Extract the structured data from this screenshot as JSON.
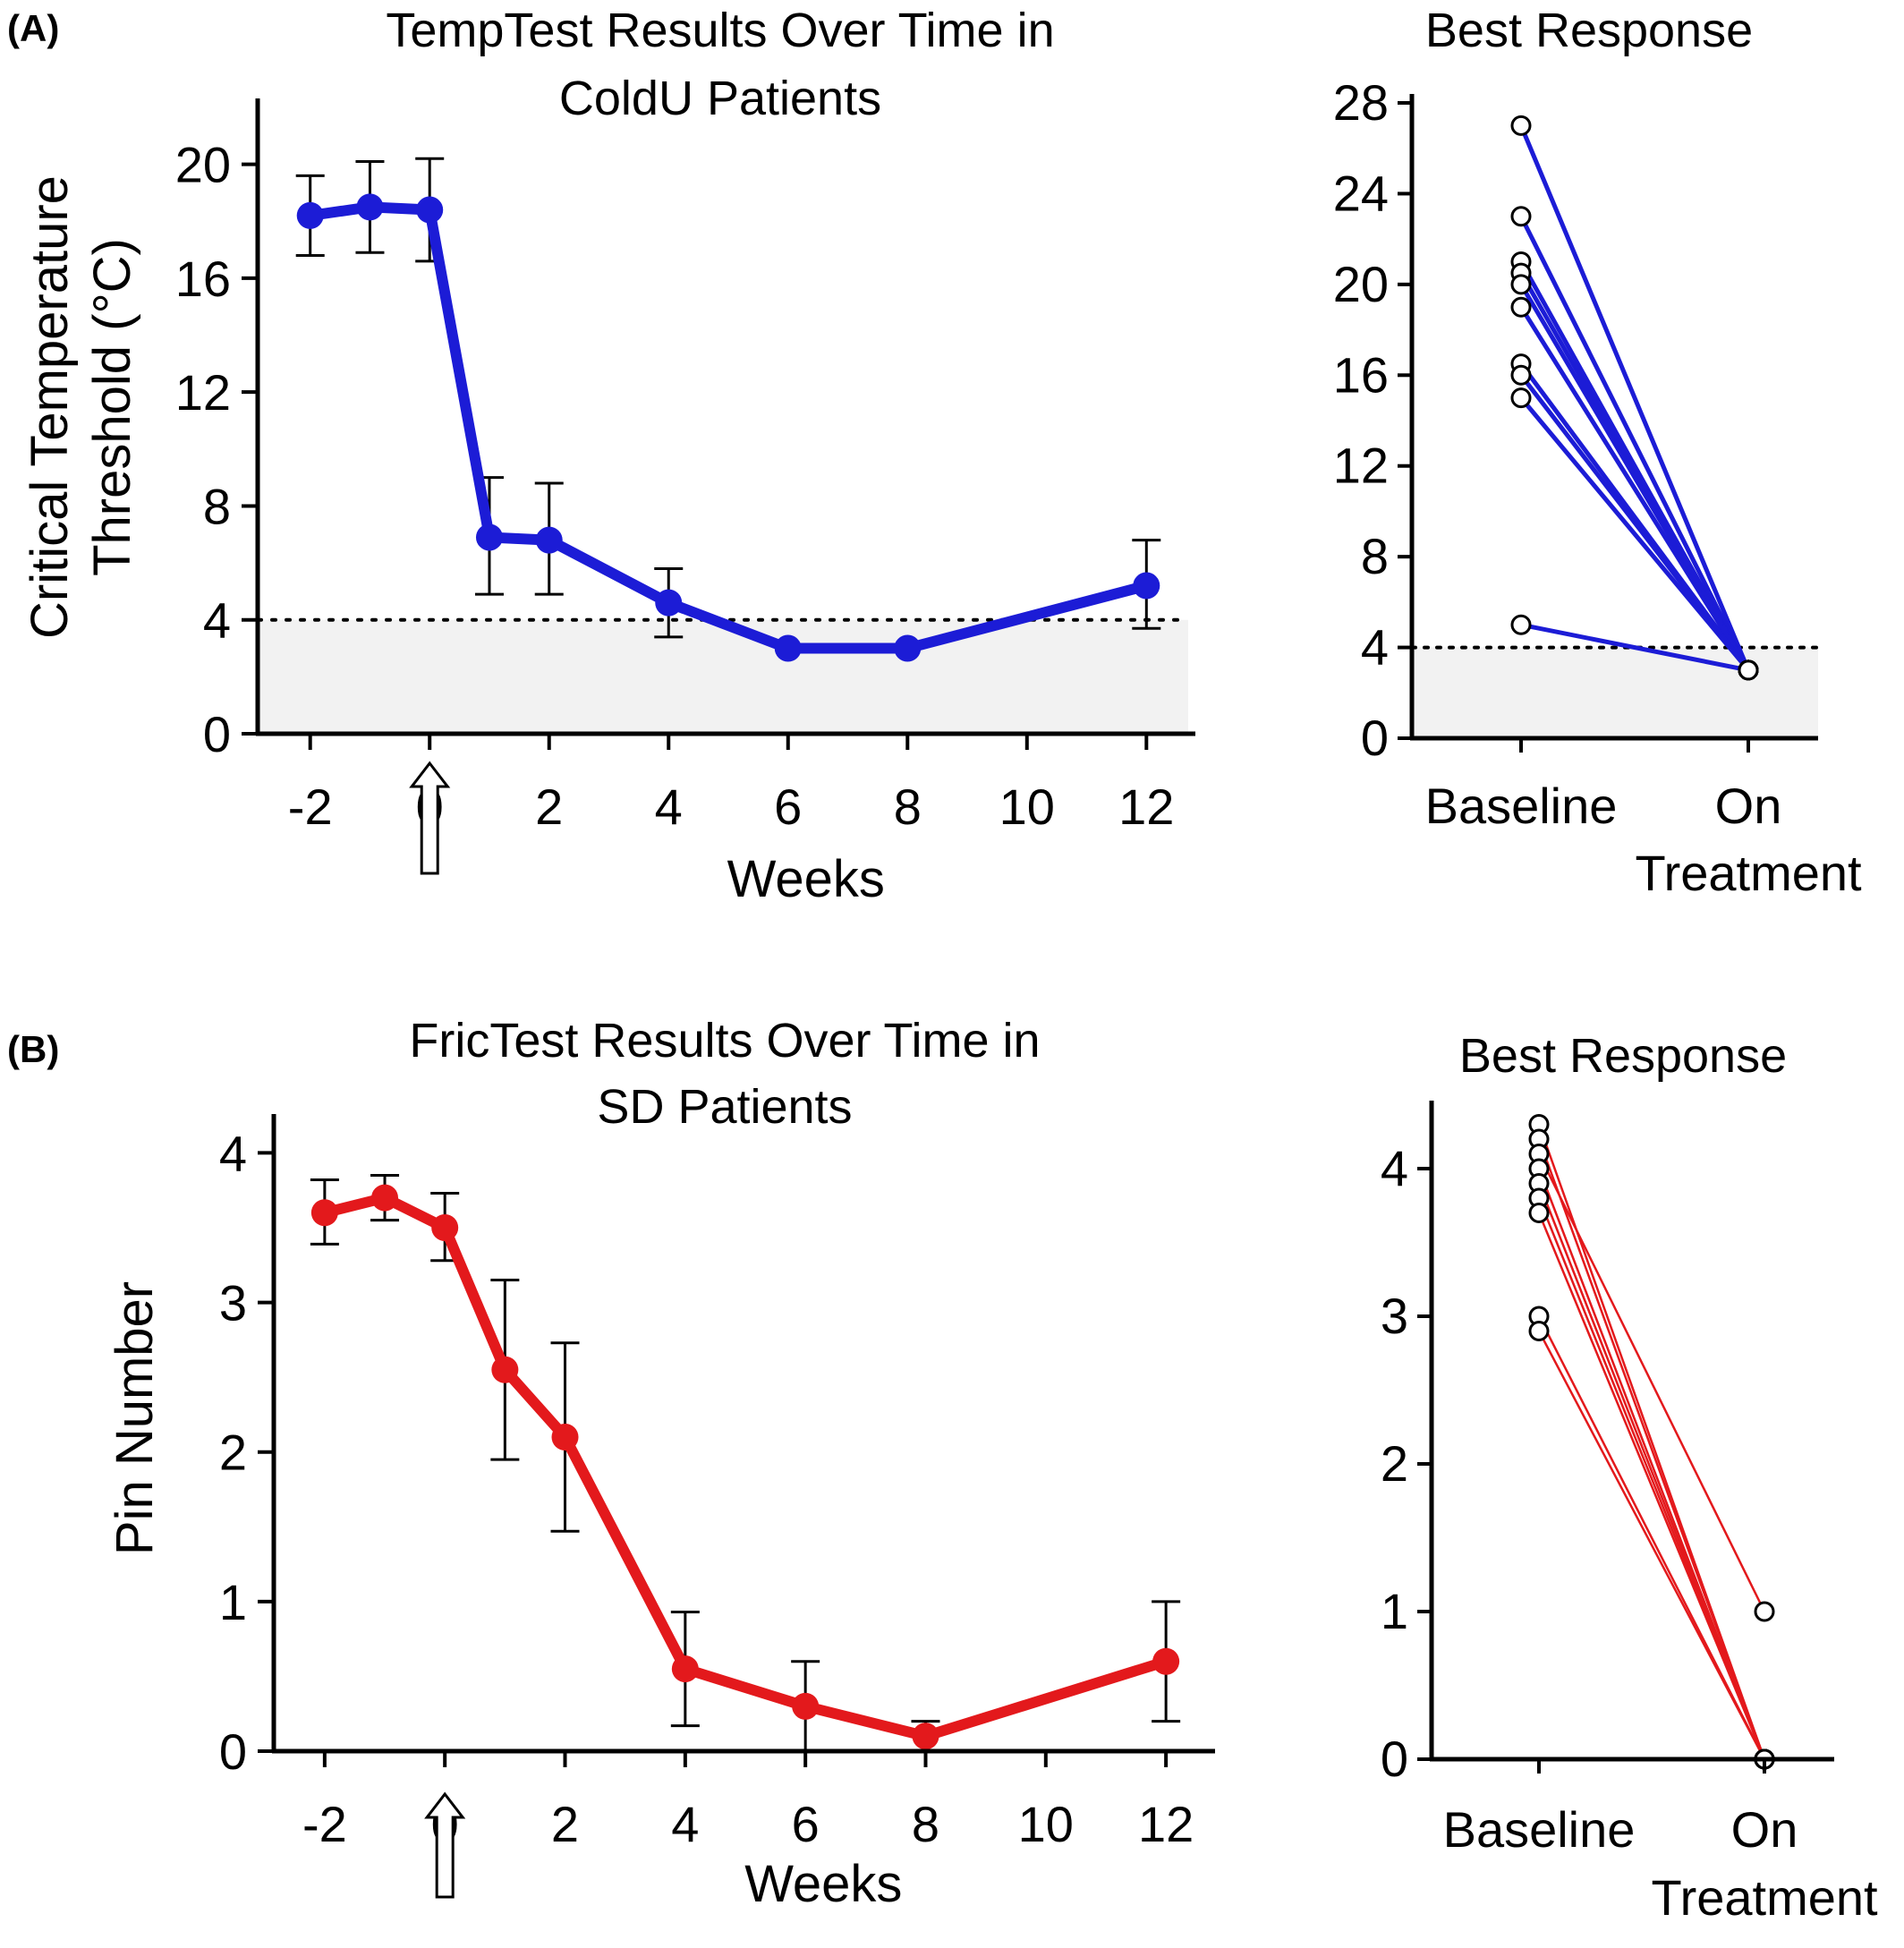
{
  "chart_data": [
    {
      "panel": "(A)",
      "type": "line",
      "title": "TempTest Results Over Time in ColdU Patients",
      "title_lines": [
        "TempTest Results Over Time in",
        "ColdU Patients"
      ],
      "xlabel": "Weeks",
      "ylabel": "Critical Temperature Threshold (°C)",
      "ylabel_lines": [
        "Critical Temperature",
        "Threshold (°C)"
      ],
      "xlim": [
        -2.4,
        12.4
      ],
      "ylim": [
        0,
        22
      ],
      "xticks": [
        -2,
        0,
        2,
        4,
        6,
        8,
        10,
        12
      ],
      "yticks": [
        0,
        4,
        8,
        12,
        16,
        20
      ],
      "reference_line": 4,
      "treatment_start_week": 0,
      "color": "#1c1cd6",
      "series": [
        {
          "x": [
            -2,
            -1,
            0,
            1,
            2,
            4,
            6,
            8,
            12
          ],
          "values": [
            18.2,
            18.5,
            18.4,
            6.9,
            6.8,
            4.6,
            3.0,
            3.0,
            5.2
          ],
          "err_low": [
            16.8,
            16.9,
            16.6,
            4.9,
            4.9,
            3.4,
            null,
            null,
            3.7
          ],
          "err_high": [
            19.6,
            20.1,
            20.2,
            9.0,
            8.8,
            5.8,
            null,
            null,
            6.8
          ]
        }
      ]
    },
    {
      "panel": "",
      "type": "line",
      "title": "Best Response",
      "categories": [
        "Baseline",
        "On Treatment"
      ],
      "category_lines": [
        [
          "Baseline"
        ],
        [
          "On",
          "Treatment"
        ]
      ],
      "ylim": [
        0,
        28
      ],
      "yticks": [
        0,
        4,
        8,
        12,
        16,
        20,
        24,
        28
      ],
      "reference_line": 4,
      "color": "#1c1cd6",
      "series": [
        {
          "values": [
            27,
            3
          ]
        },
        {
          "values": [
            23,
            3
          ]
        },
        {
          "values": [
            21,
            3
          ]
        },
        {
          "values": [
            20.5,
            3
          ]
        },
        {
          "values": [
            20,
            3
          ]
        },
        {
          "values": [
            19,
            3
          ]
        },
        {
          "values": [
            16.5,
            3
          ]
        },
        {
          "values": [
            16,
            3
          ]
        },
        {
          "values": [
            15,
            3
          ]
        },
        {
          "values": [
            5,
            3
          ]
        }
      ]
    },
    {
      "panel": "(B)",
      "type": "line",
      "title": "FricTest Results Over Time in SD Patients",
      "title_lines": [
        "FricTest Results Over Time in",
        "SD Patients"
      ],
      "xlabel": "Weeks",
      "ylabel": "Pin Number",
      "ylabel_lines": [
        "Pin Number"
      ],
      "xlim": [
        -2.4,
        12.4
      ],
      "ylim": [
        0,
        4.2
      ],
      "xticks": [
        -2,
        0,
        2,
        4,
        6,
        8,
        10,
        12
      ],
      "yticks": [
        0,
        1,
        2,
        3,
        4
      ],
      "treatment_start_week": 0,
      "color": "#e3191c",
      "series": [
        {
          "x": [
            -2,
            -1,
            0,
            1,
            2,
            4,
            6,
            8,
            12
          ],
          "values": [
            3.6,
            3.7,
            3.5,
            2.55,
            2.1,
            0.55,
            0.3,
            0.1,
            0.6
          ],
          "err_low": [
            3.39,
            3.55,
            3.28,
            1.95,
            1.47,
            0.17,
            0.0,
            0.0,
            0.2
          ],
          "err_high": [
            3.82,
            3.85,
            3.73,
            3.15,
            2.73,
            0.93,
            0.6,
            0.2,
            1.0
          ]
        }
      ]
    },
    {
      "panel": "",
      "type": "line",
      "title": "Best Response",
      "categories": [
        "Baseline",
        "On Treatment"
      ],
      "category_lines": [
        [
          "Baseline"
        ],
        [
          "On",
          "Treatment"
        ]
      ],
      "ylim": [
        0,
        4.4
      ],
      "yticks": [
        0,
        1,
        2,
        3,
        4
      ],
      "color": "#e3191c",
      "series": [
        {
          "values": [
            4.3,
            0
          ]
        },
        {
          "values": [
            4.2,
            0
          ]
        },
        {
          "values": [
            4.1,
            1
          ]
        },
        {
          "values": [
            4.0,
            0
          ]
        },
        {
          "values": [
            3.9,
            0
          ]
        },
        {
          "values": [
            3.8,
            0
          ]
        },
        {
          "values": [
            3.7,
            0
          ]
        },
        {
          "values": [
            3.0,
            0
          ]
        },
        {
          "values": [
            2.9,
            0
          ]
        }
      ]
    }
  ]
}
